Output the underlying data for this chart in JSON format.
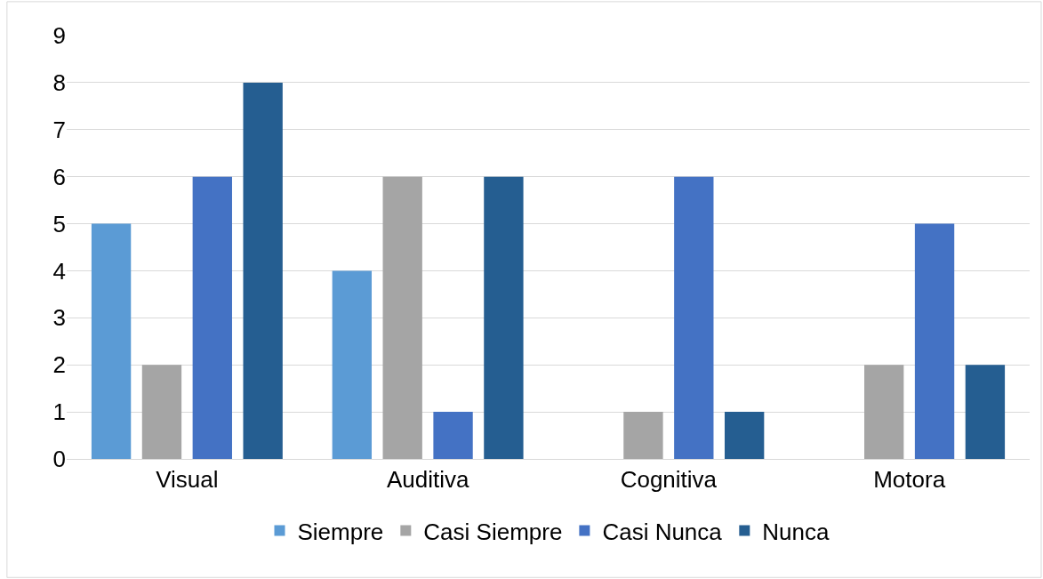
{
  "chart_data": {
    "type": "bar",
    "categories": [
      "Visual",
      "Auditiva",
      "Cognitiva",
      "Motora"
    ],
    "series": [
      {
        "name": "Siempre",
        "color": "#5b9bd5",
        "values": [
          5,
          4,
          0,
          0
        ]
      },
      {
        "name": "Casi Siempre",
        "color": "#a5a5a5",
        "values": [
          2,
          6,
          1,
          2
        ]
      },
      {
        "name": "Casi Nunca",
        "color": "#4472c4",
        "values": [
          6,
          1,
          6,
          5
        ]
      },
      {
        "name": "Nunca",
        "color": "#255e91",
        "values": [
          8,
          6,
          1,
          2
        ]
      }
    ],
    "ylim": [
      0,
      9
    ],
    "yticks": [
      0,
      1,
      2,
      3,
      4,
      5,
      6,
      7,
      8,
      9
    ],
    "grid": "y",
    "legend": "bottom"
  }
}
